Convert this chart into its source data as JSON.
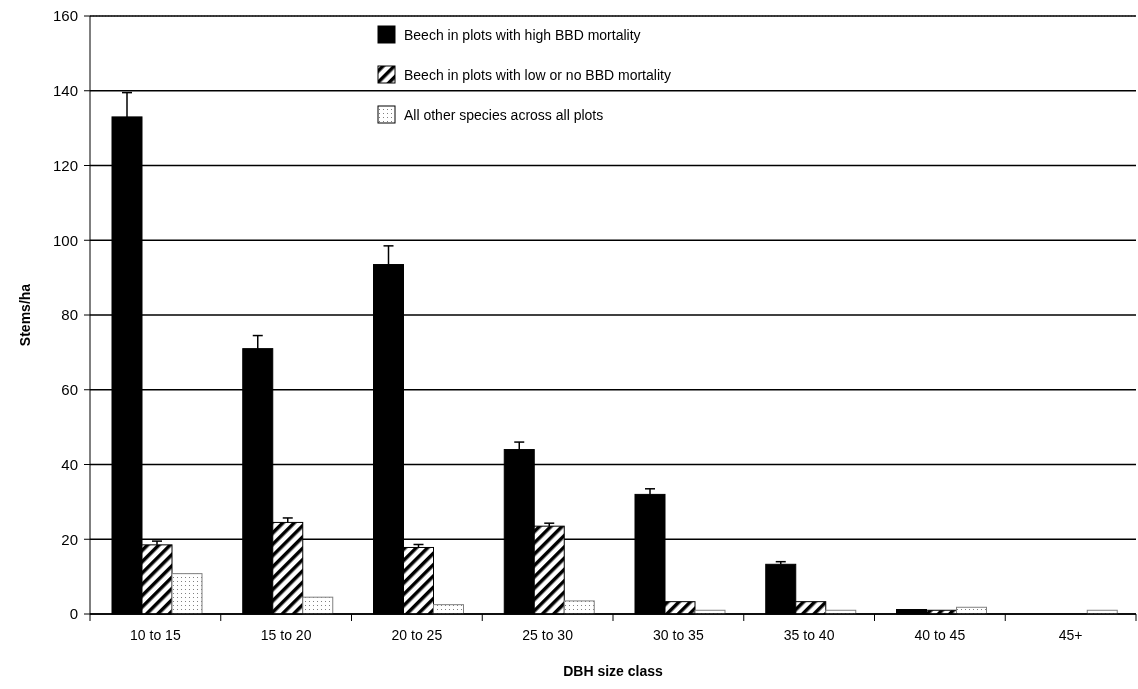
{
  "chart_data": {
    "type": "bar",
    "xlabel": "DBH size class",
    "ylabel": "Stems/ha",
    "categories": [
      "10 to 15",
      "15 to 20",
      "20 to 25",
      "25 to 30",
      "30 to 35",
      "35 to 40",
      "40 to 45",
      "45+"
    ],
    "series": [
      {
        "name": "Beech in plots with high BBD mortality",
        "color": "#000000",
        "values": [
          133,
          71,
          93.5,
          44,
          32,
          13.3,
          1.2,
          0
        ],
        "errors": [
          6.5,
          3.5,
          5,
          2,
          1.5,
          0.7,
          null,
          null
        ]
      },
      {
        "name": "Beech in plots with low or no BBD mortality",
        "color": "#000000",
        "values": [
          18.5,
          24.5,
          17.8,
          23.5,
          3.3,
          3.3,
          1,
          0
        ],
        "errors": [
          1,
          1.2,
          0.8,
          0.8,
          null,
          null,
          null,
          null
        ]
      },
      {
        "name": "All other species across all plots",
        "color": "#808080",
        "values": [
          10.8,
          4.5,
          2.5,
          3.5,
          1,
          1,
          1.8,
          1
        ]
      }
    ],
    "ylim": [
      0,
      160
    ],
    "yticks": [
      0,
      20,
      40,
      60,
      80,
      100,
      120,
      140,
      160
    ],
    "grid": "y",
    "legend": "top"
  }
}
